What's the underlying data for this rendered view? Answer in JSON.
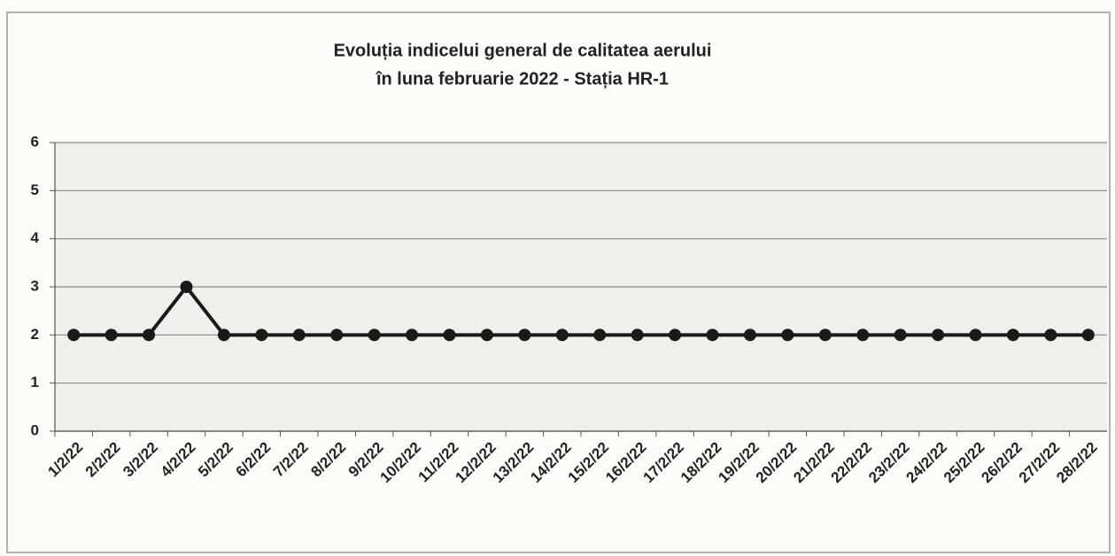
{
  "chart_data": {
    "type": "line",
    "title": [
      "Evoluția indicelui general de calitatea aerului",
      "în luna februarie 2022 - Stația HR-1"
    ],
    "categories": [
      "1/2/22",
      "2/2/22",
      "3/2/22",
      "4/2/22",
      "5/2/22",
      "6/2/22",
      "7/2/22",
      "8/2/22",
      "9/2/22",
      "10/2/22",
      "11/2/22",
      "12/2/22",
      "13/2/22",
      "14/2/22",
      "15/2/22",
      "16/2/22",
      "17/2/22",
      "18/2/22",
      "19/2/22",
      "20/2/22",
      "21/2/22",
      "22/2/22",
      "23/2/22",
      "24/2/22",
      "25/2/22",
      "26/2/22",
      "27/2/22",
      "28/2/22"
    ],
    "values": [
      2,
      2,
      2,
      3,
      2,
      2,
      2,
      2,
      2,
      2,
      2,
      2,
      2,
      2,
      2,
      2,
      2,
      2,
      2,
      2,
      2,
      2,
      2,
      2,
      2,
      2,
      2,
      2
    ],
    "color": "#1a1a1a",
    "ylim": [
      0,
      6
    ],
    "yticks": [
      0,
      1,
      2,
      3,
      4,
      5,
      6
    ],
    "grid": true
  }
}
